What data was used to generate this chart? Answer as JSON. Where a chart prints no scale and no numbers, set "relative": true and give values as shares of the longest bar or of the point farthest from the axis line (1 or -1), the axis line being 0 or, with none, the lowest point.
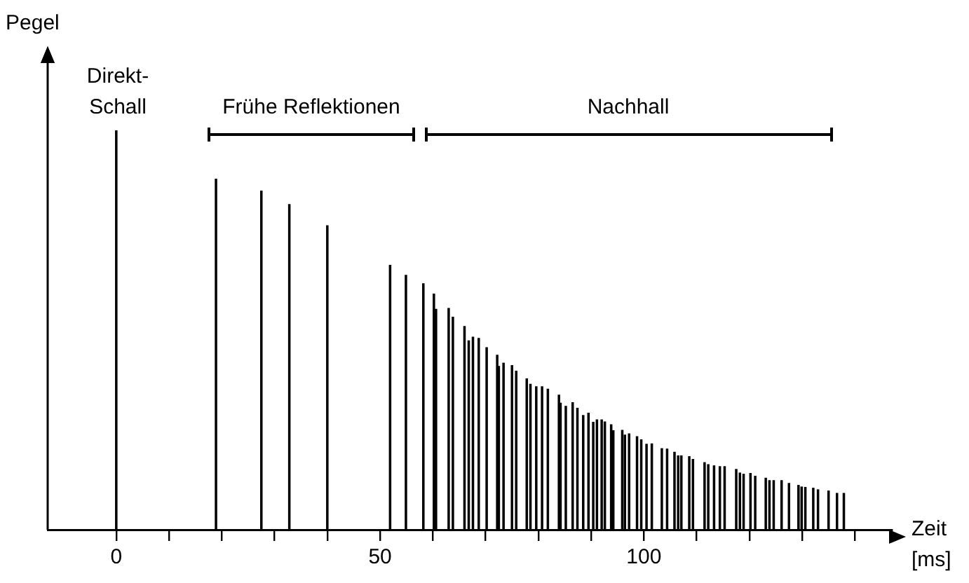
{
  "chart_data": {
    "type": "bar",
    "relative": true,
    "xlabel": "Zeit [ms]",
    "ylabel": "Pegel",
    "xlim": [
      -13,
      147
    ],
    "xticks": [
      0,
      {
        "value": 10,
        "label": null
      },
      {
        "value": 20,
        "label": null
      },
      {
        "value": 30,
        "label": null
      },
      {
        "value": 40,
        "label": null
      },
      50,
      {
        "value": 60,
        "label": null
      },
      {
        "value": 70,
        "label": null
      },
      {
        "value": 80,
        "label": null
      },
      {
        "value": 90,
        "label": null
      },
      100,
      {
        "value": 110,
        "label": null
      },
      {
        "value": 120,
        "label": null
      },
      {
        "value": 130,
        "label": null
      },
      {
        "value": 140,
        "label": null
      }
    ],
    "x": [
      0,
      18.9,
      27.5,
      32.8,
      40.0,
      51.9,
      54.9,
      58.2,
      60.2,
      60.6,
      63.0,
      63.8,
      66.0,
      66.8,
      67.6,
      68.7,
      70.2,
      72.2,
      72.5,
      73.4,
      75.0,
      75.8,
      77.8,
      78.5,
      79.6,
      80.7,
      81.8,
      83.9,
      84.2,
      85.2,
      86.5,
      87.4,
      88.5,
      89.5,
      90.4,
      91.1,
      92.0,
      92.6,
      93.8,
      94.2,
      95.9,
      96.4,
      97.2,
      98.7,
      99.5,
      100.5,
      101.5,
      103.4,
      104.4,
      105.8,
      106.5,
      107.1,
      108.6,
      109.3,
      111.5,
      112.2,
      113.3,
      114.4,
      115.3,
      117.5,
      118.2,
      118.9,
      120.2,
      121.1,
      123.1,
      123.8,
      124.6,
      126.1,
      127.5,
      129.3,
      129.9,
      130.6,
      132.1,
      133.0,
      135.0,
      136.6,
      137.9
    ],
    "values": [
      1.0,
      0.878,
      0.848,
      0.814,
      0.761,
      0.662,
      0.637,
      0.616,
      0.59,
      0.552,
      0.554,
      0.532,
      0.509,
      0.473,
      0.482,
      0.479,
      0.456,
      0.437,
      0.409,
      0.417,
      0.411,
      0.397,
      0.378,
      0.364,
      0.358,
      0.358,
      0.352,
      0.337,
      0.317,
      0.309,
      0.318,
      0.304,
      0.286,
      0.292,
      0.269,
      0.275,
      0.275,
      0.27,
      0.263,
      0.248,
      0.249,
      0.237,
      0.24,
      0.233,
      0.225,
      0.214,
      0.215,
      0.203,
      0.202,
      0.194,
      0.185,
      0.185,
      0.183,
      0.176,
      0.168,
      0.163,
      0.16,
      0.158,
      0.158,
      0.151,
      0.142,
      0.139,
      0.141,
      0.134,
      0.129,
      0.123,
      0.123,
      0.123,
      0.116,
      0.111,
      0.107,
      0.106,
      0.104,
      0.1,
      0.097,
      0.091,
      0.091
    ],
    "color": "#000000",
    "annotations": [
      "Direkt-\nSchall",
      "Frühe Reflektionen",
      "Nachhall"
    ],
    "legend": false
  }
}
